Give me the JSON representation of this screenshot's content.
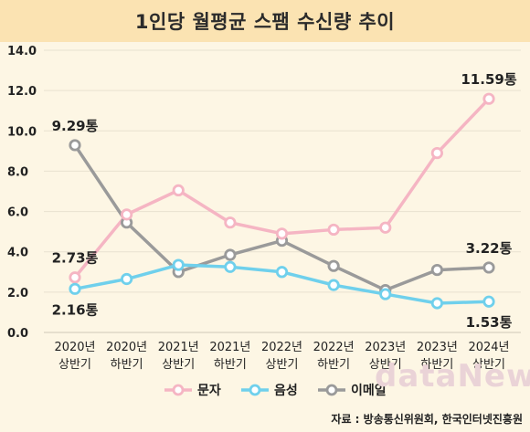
{
  "header": {
    "title": "1인당 월평균 스팸 수신량 추이"
  },
  "source": "자료 : 방송통신위원회, 한국인터넷진흥원",
  "watermark": "dataNews",
  "chart_data": {
    "type": "line",
    "title": "1인당 월평균 스팸 수신량 추이",
    "categories": [
      [
        "2020년",
        "상반기"
      ],
      [
        "2020년",
        "하반기"
      ],
      [
        "2021년",
        "상반기"
      ],
      [
        "2021년",
        "하반기"
      ],
      [
        "2022년",
        "상반기"
      ],
      [
        "2022년",
        "하반기"
      ],
      [
        "2023년",
        "상반기"
      ],
      [
        "2023년",
        "하반기"
      ],
      [
        "2024년",
        "상반기"
      ]
    ],
    "ylim": [
      0,
      14
    ],
    "yticks": [
      "0.0",
      "2.0",
      "4.0",
      "6.0",
      "8.0",
      "10.0",
      "12.0",
      "14.0"
    ],
    "ytick_values": [
      0,
      2,
      4,
      6,
      8,
      10,
      12,
      14
    ],
    "grid": true,
    "legend": "bottom",
    "series": [
      {
        "name": "문자",
        "color": "#f5b5c3",
        "values": [
          2.73,
          5.85,
          7.05,
          5.45,
          4.9,
          5.1,
          5.2,
          8.9,
          11.59
        ]
      },
      {
        "name": "음성",
        "color": "#6fd0ec",
        "values": [
          2.16,
          2.65,
          3.35,
          3.25,
          3.0,
          2.35,
          1.9,
          1.45,
          1.53
        ]
      },
      {
        "name": "이메일",
        "color": "#9a9a9a",
        "values": [
          9.29,
          5.45,
          3.0,
          3.85,
          4.55,
          3.3,
          2.1,
          3.1,
          3.22
        ]
      }
    ],
    "annotations": [
      {
        "text": "9.29통",
        "series": 2,
        "index": 0,
        "pos": "above"
      },
      {
        "text": "2.73통",
        "series": 0,
        "index": 0,
        "pos": "above"
      },
      {
        "text": "2.16통",
        "series": 1,
        "index": 0,
        "pos": "below"
      },
      {
        "text": "11.59통",
        "series": 0,
        "index": 8,
        "pos": "above"
      },
      {
        "text": "3.22통",
        "series": 2,
        "index": 8,
        "pos": "above"
      },
      {
        "text": "1.53통",
        "series": 1,
        "index": 8,
        "pos": "below"
      }
    ]
  }
}
